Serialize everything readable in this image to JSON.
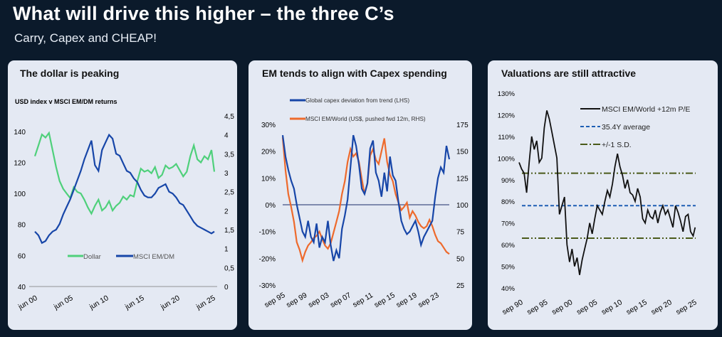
{
  "header": {
    "title": "What will drive this higher – the three C’s",
    "subtitle": "Carry, Capex and CHEAP!"
  },
  "colors": {
    "background": "#0b1a2b",
    "panel": "#e4e9f3",
    "green": "#4fd07b",
    "blue": "#1746a8",
    "orange": "#ee6a2c",
    "black": "#111111",
    "dashed_blue": "#1e5fb4",
    "olive": "#4a5a1a"
  },
  "chart_data": [
    {
      "type": "line",
      "panel_title": "The dollar is peaking",
      "title": "USD index v MSCI EM/DM returns",
      "x_ticks": [
        "jun 00",
        "jun 05",
        "jun 10",
        "jun 15",
        "jun 20",
        "jun 25"
      ],
      "y_left": {
        "ticks": [
          "40",
          "60",
          "80",
          "100",
          "120",
          "140"
        ],
        "lim": [
          40,
          150
        ]
      },
      "y_right": {
        "ticks": [
          "0",
          "0,5",
          "1",
          "1,5",
          "2",
          "2,5",
          "3",
          "3,5",
          "4",
          "4,5"
        ],
        "lim": [
          0,
          4.5
        ]
      },
      "legend": [
        "Dollar",
        "MSCI EM/DM"
      ],
      "legend_position": "bottom",
      "series": [
        {
          "name": "Dollar",
          "axis": "left",
          "x": [
            2000.0,
            2000.5,
            2001.0,
            2001.5,
            2002.0,
            2002.5,
            2003.0,
            2003.5,
            2004.0,
            2004.5,
            2005.0,
            2005.5,
            2006.0,
            2006.5,
            2007.0,
            2007.5,
            2008.0,
            2008.5,
            2009.0,
            2009.5,
            2010.0,
            2010.5,
            2011.0,
            2011.5,
            2012.0,
            2012.5,
            2013.0,
            2013.5,
            2014.0,
            2014.5,
            2015.0,
            2015.5,
            2016.0,
            2016.5,
            2017.0,
            2017.5,
            2018.0,
            2018.5,
            2019.0,
            2019.5,
            2020.0,
            2020.5,
            2021.0,
            2021.5,
            2022.0,
            2022.5,
            2023.0,
            2023.5,
            2024.0,
            2024.5,
            2025.0,
            2025.4
          ],
          "values": [
            124,
            131,
            138,
            136,
            139,
            128,
            117,
            108,
            103,
            100,
            97,
            104,
            101,
            100,
            96,
            91,
            87,
            92,
            96,
            89,
            91,
            95,
            89,
            92,
            94,
            98,
            96,
            99,
            98,
            108,
            116,
            114,
            115,
            113,
            117,
            110,
            112,
            118,
            116,
            117,
            119,
            115,
            111,
            114,
            124,
            131,
            122,
            120,
            124,
            122,
            128,
            114
          ]
        },
        {
          "name": "MSCI EM/DM",
          "axis": "right",
          "x": [
            2000.0,
            2000.5,
            2001.0,
            2001.5,
            2002.0,
            2002.5,
            2003.0,
            2003.5,
            2004.0,
            2004.5,
            2005.0,
            2005.5,
            2006.0,
            2006.5,
            2007.0,
            2007.5,
            2008.0,
            2008.5,
            2009.0,
            2009.5,
            2010.0,
            2010.5,
            2011.0,
            2011.5,
            2012.0,
            2012.5,
            2013.0,
            2013.5,
            2014.0,
            2014.5,
            2015.0,
            2015.5,
            2016.0,
            2016.5,
            2017.0,
            2017.5,
            2018.0,
            2018.5,
            2019.0,
            2019.5,
            2020.0,
            2020.5,
            2021.0,
            2021.5,
            2022.0,
            2022.5,
            2023.0,
            2023.5,
            2024.0,
            2024.5,
            2025.0,
            2025.4
          ],
          "values": [
            1.45,
            1.35,
            1.15,
            1.2,
            1.35,
            1.45,
            1.5,
            1.65,
            1.9,
            2.1,
            2.3,
            2.55,
            2.8,
            3.05,
            3.35,
            3.6,
            3.85,
            3.2,
            3.05,
            3.6,
            3.8,
            4.0,
            3.9,
            3.5,
            3.45,
            3.25,
            3.05,
            3.0,
            2.85,
            2.75,
            2.55,
            2.4,
            2.35,
            2.35,
            2.45,
            2.6,
            2.65,
            2.7,
            2.5,
            2.45,
            2.35,
            2.2,
            2.15,
            2.0,
            1.85,
            1.7,
            1.6,
            1.55,
            1.5,
            1.45,
            1.4,
            1.45
          ]
        }
      ]
    },
    {
      "type": "line",
      "panel_title": "EM tends to align with Capex spending",
      "x_ticks": [
        "sep 95",
        "sep 99",
        "sep 03",
        "sep 07",
        "sep 11",
        "sep 15",
        "sep 19",
        "sep 23"
      ],
      "y_left": {
        "ticks": [
          "-30%",
          "-20%",
          "-10%",
          "0%",
          "10%",
          "20%",
          "30%"
        ],
        "lim": [
          -30,
          30
        ]
      },
      "y_right": {
        "ticks": [
          "25",
          "50",
          "75",
          "100",
          "125",
          "150",
          "175"
        ],
        "lim": [
          25,
          175
        ]
      },
      "legend": [
        "Global capex deviation from trend (LHS)",
        "MSCI EM/World (US$, pushed fwd 12m, RHS)"
      ],
      "legend_position": "top",
      "series": [
        {
          "name": "Global capex deviation from trend (LHS)",
          "axis": "left",
          "x": [
            1995.7,
            1996.2,
            1996.7,
            1997.2,
            1997.7,
            1998.2,
            1998.7,
            1999.2,
            1999.7,
            2000.2,
            2000.7,
            2001.2,
            2001.7,
            2002.2,
            2002.7,
            2003.2,
            2003.7,
            2004.2,
            2004.7,
            2005.2,
            2005.7,
            2006.2,
            2006.7,
            2007.2,
            2007.7,
            2008.2,
            2008.7,
            2009.2,
            2009.7,
            2010.2,
            2010.7,
            2011.2,
            2011.7,
            2012.2,
            2012.7,
            2013.2,
            2013.7,
            2014.2,
            2014.7,
            2015.2,
            2015.7,
            2016.2,
            2016.7,
            2017.2,
            2017.7,
            2018.2,
            2018.7,
            2019.2,
            2019.7,
            2020.2,
            2020.7,
            2021.2,
            2021.7,
            2022.2,
            2022.7,
            2023.2,
            2023.7,
            2024.2,
            2024.7,
            2025.2
          ],
          "values": [
            26,
            18,
            13,
            9,
            6,
            0,
            -5,
            -10,
            -12,
            -6,
            -12,
            -14,
            -7,
            -16,
            -12,
            -14,
            -6,
            -15,
            -21,
            -17,
            -20,
            -9,
            -4,
            2,
            14,
            26,
            22,
            15,
            6,
            4,
            8,
            21,
            24,
            12,
            9,
            3,
            12,
            5,
            18,
            11,
            9,
            1,
            -6,
            -9,
            -11,
            -10,
            -8,
            -6,
            -10,
            -15,
            -12,
            -10,
            -8,
            -6,
            3,
            10,
            14,
            12,
            22,
            17
          ]
        },
        {
          "name": "MSCI EM/World (US$, pushed fwd 12m, RHS)",
          "axis": "right",
          "x": [
            1995.7,
            1996.2,
            1996.7,
            1997.2,
            1997.7,
            1998.2,
            1998.7,
            1999.2,
            1999.7,
            2000.2,
            2000.7,
            2001.2,
            2001.7,
            2002.2,
            2002.7,
            2003.2,
            2003.7,
            2004.2,
            2004.7,
            2005.2,
            2005.7,
            2006.2,
            2006.7,
            2007.2,
            2007.7,
            2008.2,
            2008.7,
            2009.2,
            2009.7,
            2010.2,
            2010.7,
            2011.2,
            2011.7,
            2012.2,
            2012.7,
            2013.2,
            2013.7,
            2014.2,
            2014.7,
            2015.2,
            2015.7,
            2016.2,
            2016.7,
            2017.2,
            2017.7,
            2018.2,
            2018.7,
            2019.2,
            2019.7,
            2020.2,
            2020.7,
            2021.2,
            2021.7,
            2022.2,
            2022.7,
            2023.2,
            2023.7,
            2024.2,
            2024.7,
            2025.2
          ],
          "values": [
            163,
            132,
            110,
            98,
            84,
            65,
            58,
            48,
            56,
            62,
            65,
            69,
            71,
            75,
            68,
            62,
            59,
            64,
            74,
            84,
            94,
            110,
            122,
            140,
            152,
            145,
            148,
            140,
            124,
            110,
            120,
            146,
            152,
            142,
            138,
            150,
            162,
            140,
            128,
            122,
            110,
            102,
            95,
            98,
            102,
            88,
            94,
            90,
            84,
            80,
            78,
            80,
            86,
            80,
            72,
            66,
            64,
            60,
            56,
            54
          ]
        }
      ]
    },
    {
      "type": "line",
      "panel_title": "Valuations are still attractive",
      "x_ticks": [
        "sep 90",
        "sep 95",
        "sep 00",
        "sep 05",
        "sep 10",
        "sep 15",
        "sep 20",
        "sep 25"
      ],
      "y_left": {
        "ticks": [
          "40%",
          "50%",
          "60%",
          "70%",
          "80%",
          "90%",
          "100%",
          "110%",
          "120%",
          "130%"
        ],
        "lim": [
          40,
          130
        ]
      },
      "legend": [
        "MSCI EM/World +12m P/E",
        "35.4Y average",
        "+/-1 S.D."
      ],
      "legend_position": "top-right",
      "average": 78,
      "sd_band": [
        63,
        93
      ],
      "series": [
        {
          "name": "MSCI EM/World +12m P/E",
          "axis": "left",
          "x": [
            1990.7,
            1991.2,
            1991.7,
            1992.2,
            1992.7,
            1993.2,
            1993.7,
            1994.2,
            1994.7,
            1995.2,
            1995.7,
            1996.2,
            1996.7,
            1997.2,
            1997.7,
            1998.2,
            1998.7,
            1999.2,
            1999.7,
            2000.2,
            2000.7,
            2001.2,
            2001.7,
            2002.2,
            2002.7,
            2003.2,
            2003.7,
            2004.2,
            2004.7,
            2005.2,
            2005.7,
            2006.2,
            2006.7,
            2007.2,
            2007.7,
            2008.2,
            2008.7,
            2009.2,
            2009.7,
            2010.2,
            2010.7,
            2011.2,
            2011.7,
            2012.2,
            2012.7,
            2013.2,
            2013.7,
            2014.2,
            2014.7,
            2015.2,
            2015.7,
            2016.2,
            2016.7,
            2017.2,
            2017.7,
            2018.2,
            2018.7,
            2019.2,
            2019.7,
            2020.2,
            2020.7,
            2021.2,
            2021.7,
            2022.2,
            2022.7,
            2023.2,
            2023.7,
            2024.2,
            2024.7,
            2025.2,
            2025.6
          ],
          "values": [
            98,
            95,
            93,
            84,
            98,
            110,
            104,
            108,
            98,
            100,
            114,
            122,
            118,
            112,
            106,
            100,
            74,
            78,
            82,
            60,
            52,
            58,
            50,
            54,
            46,
            53,
            58,
            63,
            70,
            65,
            72,
            78,
            76,
            74,
            80,
            85,
            82,
            88,
            96,
            102,
            96,
            92,
            86,
            90,
            84,
            83,
            80,
            86,
            82,
            72,
            70,
            76,
            73,
            72,
            76,
            70,
            75,
            78,
            74,
            76,
            72,
            68,
            78,
            75,
            71,
            66,
            73,
            74,
            66,
            64,
            68
          ]
        }
      ]
    }
  ]
}
